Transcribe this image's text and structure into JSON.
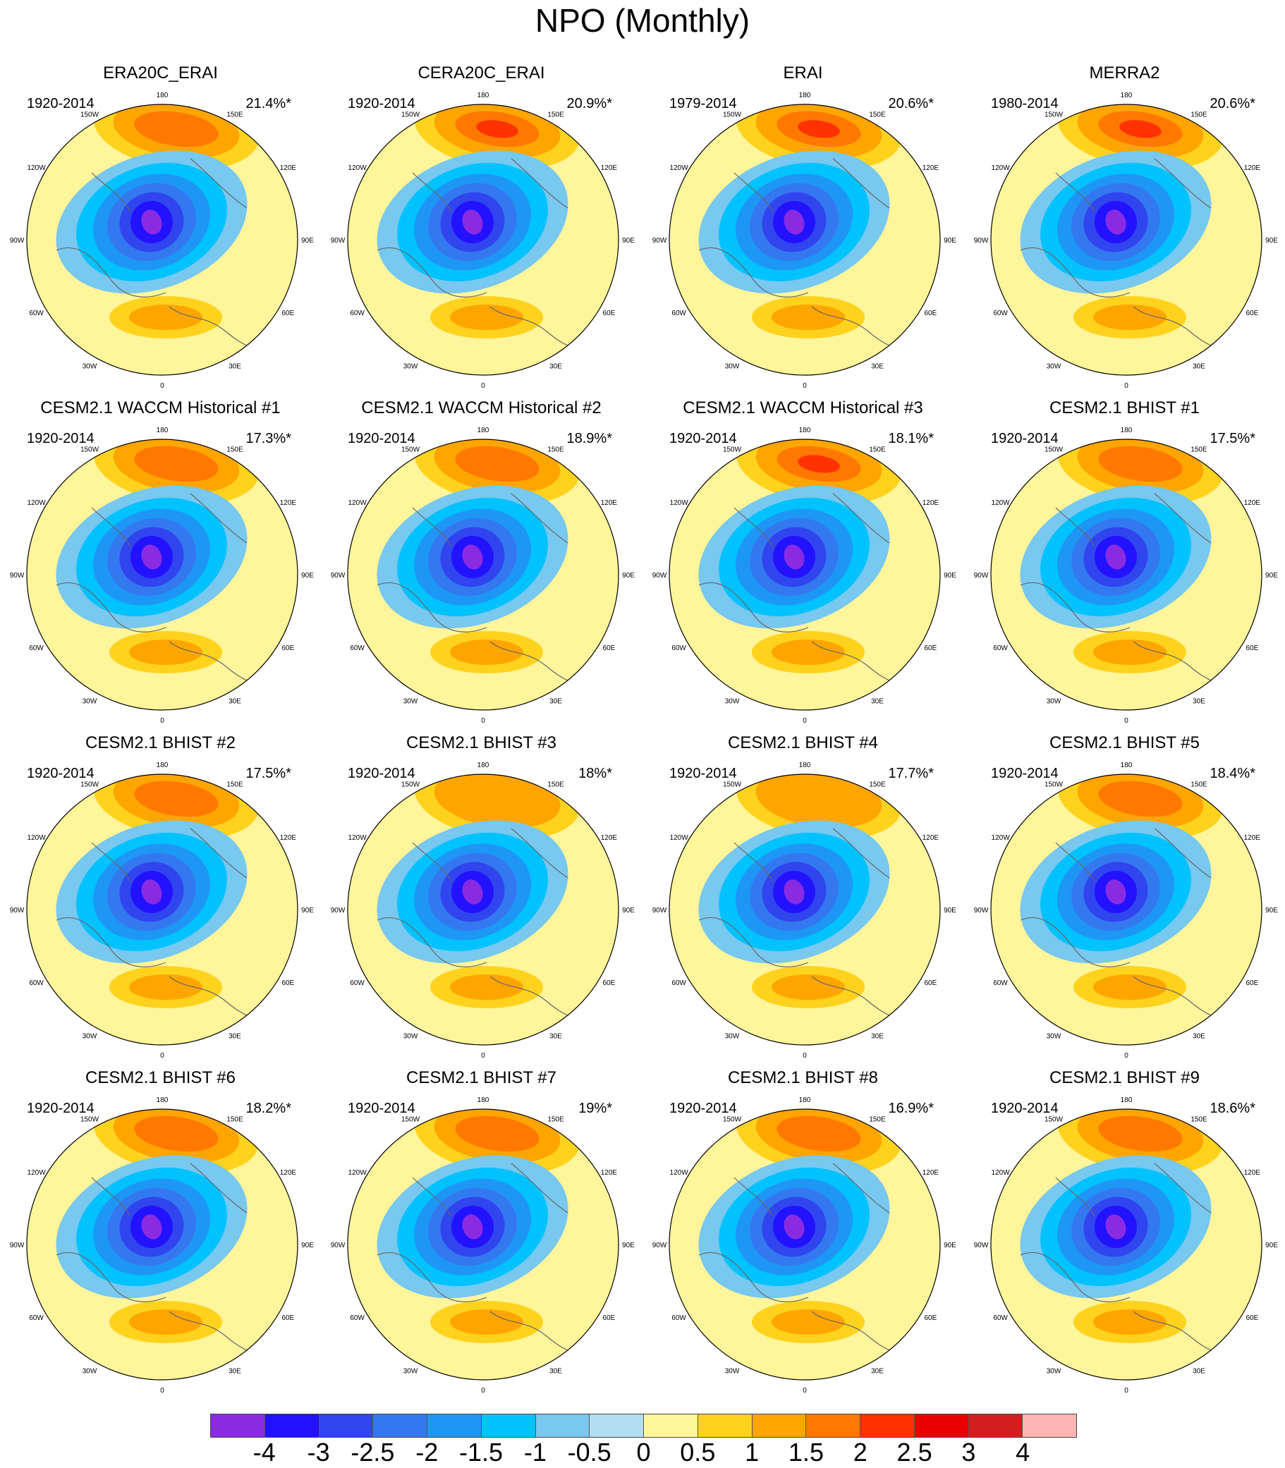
{
  "title": "NPO (Monthly)",
  "chart_data": {
    "type": "polar-contour-map-grid",
    "title": "NPO (Monthly)",
    "projection": "north polar stereographic",
    "longitude_labels": [
      "180",
      "150E",
      "120E",
      "90E",
      "60E",
      "30E",
      "0",
      "30W",
      "60W",
      "90W",
      "120W",
      "150W"
    ],
    "colorbar": {
      "levels": [
        "-4",
        "-3",
        "-2.5",
        "-2",
        "-1.5",
        "-1",
        "-0.5",
        "0",
        "0.5",
        "1",
        "1.5",
        "2",
        "2.5",
        "3",
        "4"
      ],
      "colors": [
        "#8a2be2",
        "#2212ff",
        "#3045ee",
        "#3478f0",
        "#1e96f5",
        "#00c2ff",
        "#78c8ef",
        "#b4dcf2",
        "#fff59b",
        "#ffd21e",
        "#ffa500",
        "#ff7800",
        "#ff3200",
        "#eb0000",
        "#d21e1e",
        "#ffb4b4"
      ]
    },
    "panels": [
      {
        "name": "ERA20C_ERAI",
        "period": "1920-2014",
        "variance": "21.4%*",
        "max_positive_level": 1.5
      },
      {
        "name": "CERA20C_ERAI",
        "period": "1920-2014",
        "variance": "20.9%*",
        "max_positive_level": 2
      },
      {
        "name": "ERAI",
        "period": "1979-2014",
        "variance": "20.6%*",
        "max_positive_level": 2
      },
      {
        "name": "MERRA2",
        "period": "1980-2014",
        "variance": "20.6%*",
        "max_positive_level": 2
      },
      {
        "name": "CESM2.1 WACCM Historical #1",
        "period": "1920-2014",
        "variance": "17.3%*",
        "max_positive_level": 1.5
      },
      {
        "name": "CESM2.1 WACCM Historical #2",
        "period": "1920-2014",
        "variance": "18.9%*",
        "max_positive_level": 1.5
      },
      {
        "name": "CESM2.1 WACCM Historical #3",
        "period": "1920-2014",
        "variance": "18.1%*",
        "max_positive_level": 2
      },
      {
        "name": "CESM2.1 BHIST #1",
        "period": "1920-2014",
        "variance": "17.5%*",
        "max_positive_level": 1.5
      },
      {
        "name": "CESM2.1 BHIST #2",
        "period": "1920-2014",
        "variance": "17.5%*",
        "max_positive_level": 1.5
      },
      {
        "name": "CESM2.1 BHIST #3",
        "period": "1920-2014",
        "variance": "18%*",
        "max_positive_level": 1
      },
      {
        "name": "CESM2.1 BHIST #4",
        "period": "1920-2014",
        "variance": "17.7%*",
        "max_positive_level": 1
      },
      {
        "name": "CESM2.1 BHIST #5",
        "period": "1920-2014",
        "variance": "18.4%*",
        "max_positive_level": 1.5
      },
      {
        "name": "CESM2.1 BHIST #6",
        "period": "1920-2014",
        "variance": "18.2%*",
        "max_positive_level": 1.5
      },
      {
        "name": "CESM2.1 BHIST #7",
        "period": "1920-2014",
        "variance": "19%*",
        "max_positive_level": 1.5
      },
      {
        "name": "CESM2.1 BHIST #8",
        "period": "1920-2014",
        "variance": "16.9%*",
        "max_positive_level": 1.5
      },
      {
        "name": "CESM2.1 BHIST #9",
        "period": "1920-2014",
        "variance": "18.6%*",
        "max_positive_level": 1.5
      }
    ]
  }
}
